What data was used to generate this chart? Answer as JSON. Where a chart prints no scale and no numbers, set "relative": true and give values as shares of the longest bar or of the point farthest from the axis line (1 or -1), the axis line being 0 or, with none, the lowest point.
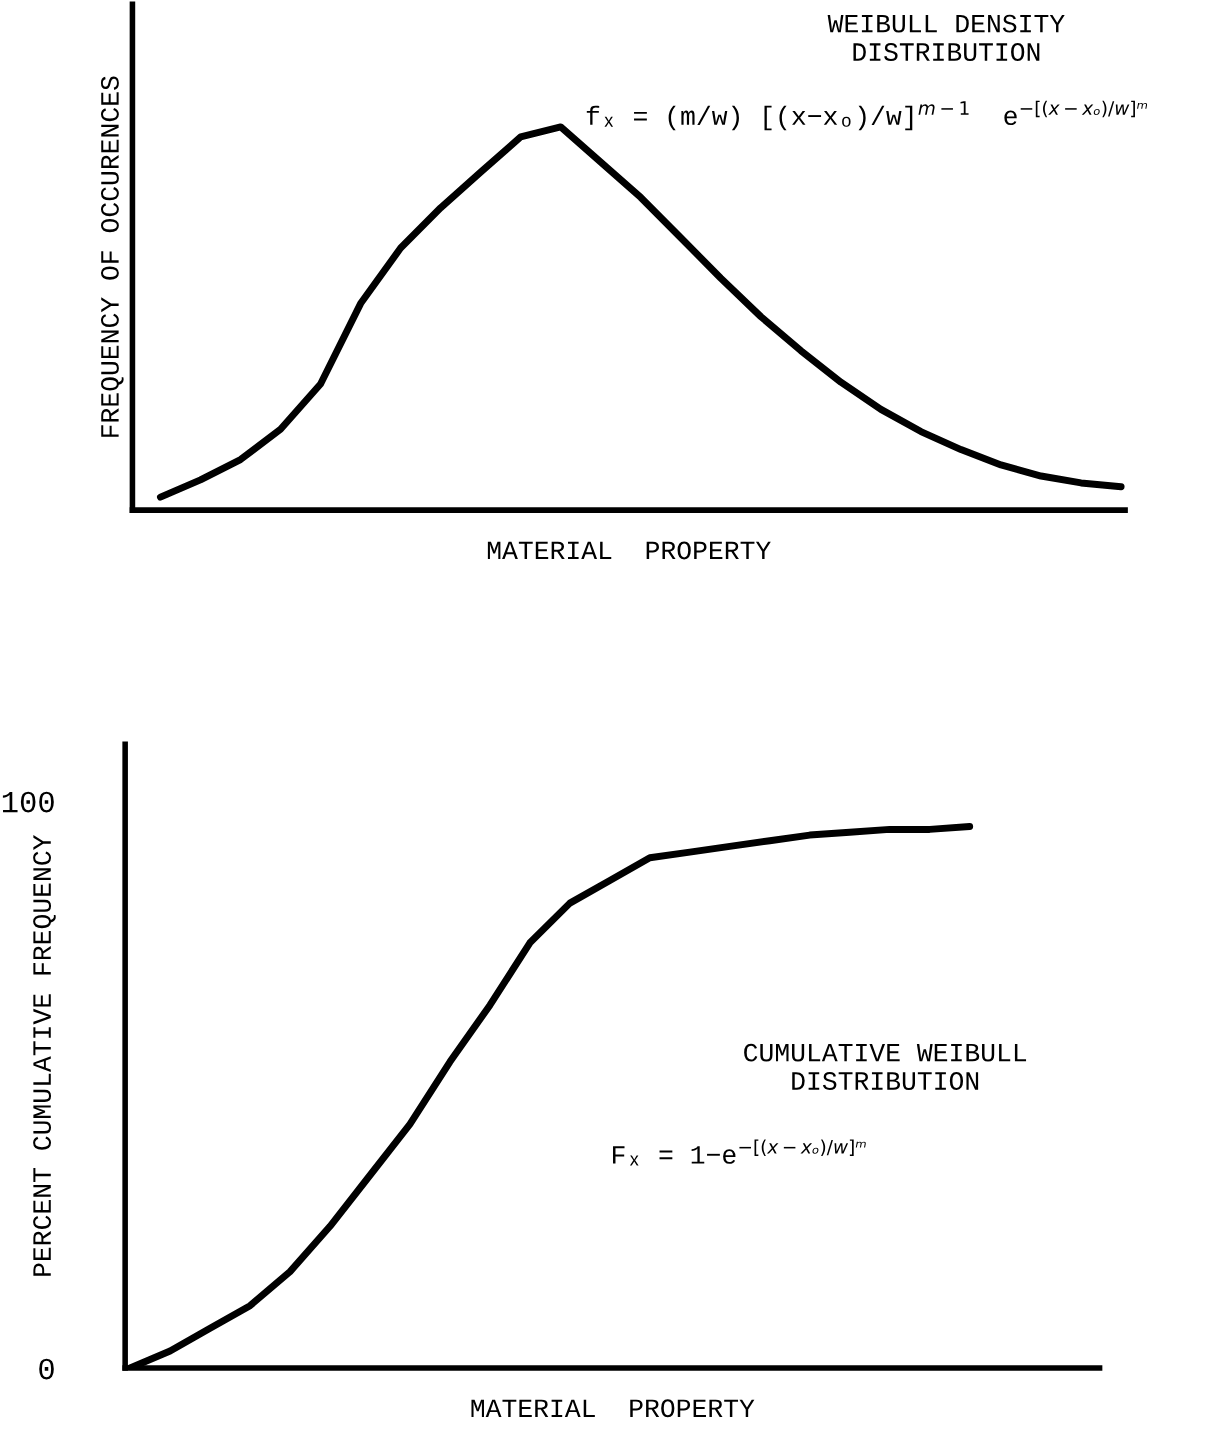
{
  "chart_data": [
    {
      "type": "line",
      "title": "WEIBULL DENSITY\nDISTRIBUTION",
      "xlabel": "MATERIAL  PROPERTY",
      "ylabel": "FREQUENCY OF OCCURENCES",
      "relative": true,
      "categories": [
        null,
        null,
        null,
        null,
        null,
        null,
        null,
        null,
        null,
        null,
        null,
        null,
        null,
        null,
        null,
        null,
        null,
        null,
        null,
        null,
        null,
        null,
        null,
        null,
        null
      ],
      "series": [
        {
          "color": "#000000",
          "values": [
            0.034,
            0.079,
            0.132,
            0.211,
            0.329,
            0.539,
            0.684,
            0.789,
            0.882,
            0.974,
            1,
            0.908,
            0.816,
            0.711,
            0.605,
            0.505,
            0.416,
            0.334,
            0.263,
            0.205,
            0.158,
            0.118,
            0.089,
            0.071,
            0.061
          ]
        }
      ],
      "annotations": [
        "fₓ = (m/w) [(x−xₒ)/w]$^{m−1}$  e$^{−[(x−xₒ)/w]ᵐ}$"
      ],
      "grid": false,
      "marker": "none",
      "line_style": "solid"
    },
    {
      "type": "line",
      "title": "CUMULATIVE WEIBULL\nDISTRIBUTION",
      "xlabel": "MATERIAL  PROPERTY",
      "ylabel": "PERCENT CUMULATIVE FREQUENCY",
      "categories": [
        null,
        null,
        null,
        null,
        null,
        null,
        null,
        null,
        null,
        null,
        null,
        null,
        null,
        null,
        null,
        null,
        null,
        null,
        null,
        null,
        null,
        null,
        null,
        null,
        null
      ],
      "series": [
        {
          "color": "#000000",
          "values": [
            0,
            3,
            7,
            11,
            17,
            25,
            34,
            43,
            54,
            64,
            75,
            82,
            86,
            90,
            91,
            92,
            93,
            94,
            94.5,
            95,
            95,
            95.5,
            null,
            null,
            null
          ]
        }
      ],
      "ylim": [
        0,
        110
      ],
      "yticks": [
        0,
        100
      ],
      "annotations": [
        "Fₓ = 1−e$^{−[(x−xₒ)/w]ᵐ}$"
      ],
      "grid": false,
      "marker": "none",
      "line_style": "solid"
    }
  ]
}
